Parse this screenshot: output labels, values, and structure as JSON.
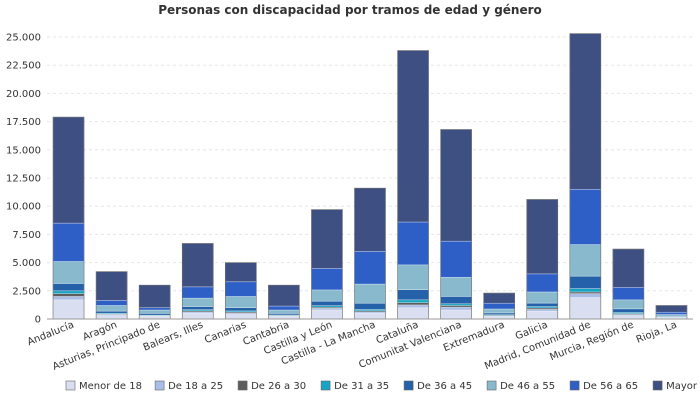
{
  "chart_data": {
    "type": "bar",
    "stacked": true,
    "title": "Personas con discapacidad por tramos de edad y género",
    "xlabel": "",
    "ylabel": "",
    "ylim": [
      0,
      25000
    ],
    "yticks": [
      "0",
      "2.500",
      "5.000",
      "7.500",
      "10.000",
      "12.500",
      "15.000",
      "17.500",
      "20.000",
      "22.500",
      "25.000"
    ],
    "grid": true,
    "legend_position": "bottom",
    "categories": [
      "Andalucía",
      "Aragón",
      "Asturias, Principado de",
      "Balears, Illes",
      "Canarias",
      "Cantabria",
      "Castilla y León",
      "Castilla - La Mancha",
      "Cataluña",
      "Comunitat Valenciana",
      "Extremadura",
      "Galicia",
      "Madrid, Comunidad de",
      "Murcia, Región de",
      "Rioja, La"
    ],
    "series": [
      {
        "name": "Menor de 18",
        "color": "#d9dff0",
        "values": [
          1700,
          300,
          200,
          500,
          400,
          200,
          800,
          500,
          1000,
          800,
          200,
          700,
          1900,
          300,
          100
        ]
      },
      {
        "name": "De 18 a 25",
        "color": "#a9bde6",
        "values": [
          300,
          80,
          50,
          120,
          120,
          60,
          150,
          120,
          250,
          250,
          60,
          150,
          350,
          100,
          30
        ]
      },
      {
        "name": "De 26 a 30",
        "color": "#5d5d5d",
        "values": [
          250,
          60,
          40,
          100,
          100,
          50,
          100,
          100,
          200,
          150,
          60,
          130,
          150,
          80,
          20
        ]
      },
      {
        "name": "De 31 a 35",
        "color": "#17a3c2",
        "values": [
          250,
          70,
          50,
          110,
          100,
          50,
          130,
          130,
          250,
          150,
          60,
          130,
          300,
          100,
          30
        ]
      },
      {
        "name": "De 36 a 45",
        "color": "#2461a8",
        "values": [
          650,
          190,
          160,
          270,
          280,
          140,
          400,
          550,
          900,
          650,
          160,
          300,
          1100,
          320,
          60
        ]
      },
      {
        "name": "De 46 a 55",
        "color": "#88b9cc",
        "values": [
          1950,
          500,
          300,
          750,
          1000,
          300,
          1000,
          1700,
          2200,
          1700,
          350,
          990,
          2800,
          800,
          160
        ]
      },
      {
        "name": "De 56 a 65",
        "color": "#2d5fc7",
        "values": [
          3400,
          450,
          200,
          1000,
          1300,
          350,
          1900,
          2900,
          3800,
          3200,
          510,
          1600,
          4900,
          1100,
          200
        ]
      },
      {
        "name": "Mayor de 65",
        "color": "#3e4f82",
        "values": [
          9400,
          2550,
          2000,
          3850,
          1700,
          1850,
          5220,
          5600,
          15200,
          9900,
          900,
          6600,
          13800,
          3400,
          600
        ]
      }
    ]
  }
}
